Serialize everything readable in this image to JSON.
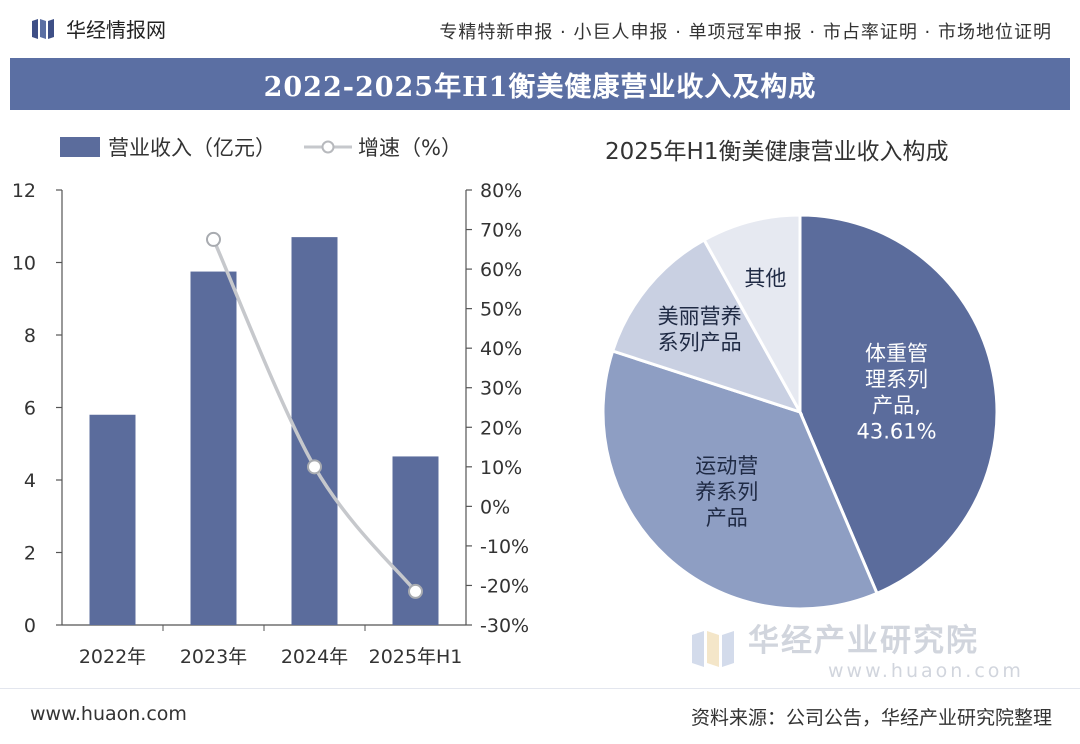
{
  "header": {
    "brand": "华经情报网",
    "services": "专精特新申报 · 小巨人申报 · 单项冠军申报 · 市占率证明 · 市场地位证明"
  },
  "title": "2022-2025年H1衡美健康营业收入及构成",
  "legend": {
    "bar_label": "营业收入（亿元）",
    "line_label": "增速（%）"
  },
  "chart_data": [
    {
      "type": "bar",
      "title": "2022-2025年H1衡美健康营业收入及构成",
      "categories": [
        "2022年",
        "2023年",
        "2024年",
        "2025年H1"
      ],
      "series": [
        {
          "name": "营业收入（亿元）",
          "values": [
            5.8,
            9.75,
            10.7,
            4.65
          ],
          "axis": "left"
        },
        {
          "name": "增速（%）",
          "type": "line",
          "values": [
            null,
            67.5,
            10,
            -21.5
          ],
          "axis": "right"
        }
      ],
      "ylim": [
        0,
        12
      ],
      "yticks": [
        0,
        2,
        4,
        6,
        8,
        10,
        12
      ],
      "y2lim": [
        -30,
        80
      ],
      "y2ticks": [
        "-30%",
        "-20%",
        "-10%",
        "0%",
        "10%",
        "20%",
        "30%",
        "40%",
        "50%",
        "60%",
        "70%",
        "80%"
      ],
      "colors": {
        "bar": "#5b6c9c",
        "line": "#c6c8cc"
      }
    },
    {
      "type": "pie",
      "title": "2025年H1衡美健康营业收入构成",
      "slices": [
        {
          "label": "体重管理系列产品,43.61%",
          "value": 43.61,
          "color": "#5b6c9c",
          "text_color": "#ffffff"
        },
        {
          "label": "运动营养系列产品",
          "value": 36.4,
          "color": "#8e9ec3",
          "text_color": "#1f2a44"
        },
        {
          "label": "美丽营养系列产品",
          "value": 11.9,
          "color": "#c9d0e2",
          "text_color": "#1f2a44"
        },
        {
          "label": "其他",
          "value": 8.09,
          "color": "#e6e9f1",
          "text_color": "#1f2a44"
        }
      ]
    }
  ],
  "watermark": {
    "name": "华经产业研究院",
    "url": "www.huaon.com"
  },
  "footer": {
    "url": "www.huaon.com",
    "source": "资料来源：公司公告，华经产业研究院整理"
  }
}
